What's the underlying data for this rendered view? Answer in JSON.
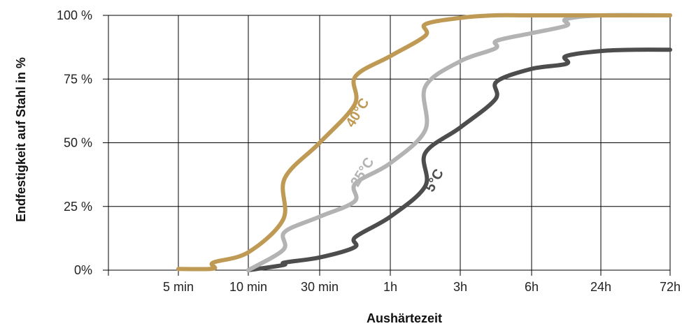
{
  "chart_data": {
    "type": "line",
    "xlabel": "Aushärtezeit",
    "ylabel": "Endfestigkeit auf Stahl in %",
    "x_ticks": [
      "5 min",
      "10 min",
      "30 min",
      "1h",
      "3h",
      "6h",
      "24h",
      "72h"
    ],
    "y_ticks": [
      "0%",
      "25 %",
      "50 %",
      "75 %",
      "100 %"
    ],
    "ylim": [
      0,
      100
    ],
    "grid": true,
    "series": [
      {
        "name": "40°C",
        "color": "#bf9a55",
        "points": [
          [
            "5 min",
            0.5
          ],
          [
            "5 min+",
            0.6
          ],
          [
            "10 min-",
            3
          ],
          [
            "10 min",
            7
          ],
          [
            "10 min+",
            20
          ],
          [
            "30 min-",
            36
          ],
          [
            "30 min",
            50
          ],
          [
            "30 min+",
            65
          ],
          [
            "1h-",
            76
          ],
          [
            "1h",
            84
          ],
          [
            "1h+",
            92
          ],
          [
            "3h-",
            96.5
          ],
          [
            "3h",
            99
          ],
          [
            "3h+",
            100
          ],
          [
            "6h",
            100
          ],
          [
            "24h",
            100
          ],
          [
            "72h",
            100
          ]
        ]
      },
      {
        "name": "25°C",
        "color": "#b3b3b3",
        "points": [
          [
            "10 min",
            0
          ],
          [
            "10 min+",
            8
          ],
          [
            "30 min-",
            15
          ],
          [
            "30 min",
            21
          ],
          [
            "30 min+",
            27
          ],
          [
            "1h-",
            34
          ],
          [
            "1h",
            42
          ],
          [
            "1h+",
            55
          ],
          [
            "3h-",
            72
          ],
          [
            "3h",
            82
          ],
          [
            "3h+",
            87
          ],
          [
            "6h-",
            90
          ],
          [
            "6h",
            93
          ],
          [
            "6h+",
            96
          ],
          [
            "24h-",
            98.5
          ],
          [
            "24h",
            100
          ],
          [
            "72h",
            100
          ]
        ]
      },
      {
        "name": "5°C",
        "color": "#4d4d4d",
        "points": [
          [
            "10 min",
            0
          ],
          [
            "10 min+",
            2
          ],
          [
            "30 min-",
            3
          ],
          [
            "30 min",
            5
          ],
          [
            "30 min+",
            9
          ],
          [
            "1h-",
            13
          ],
          [
            "1h",
            21
          ],
          [
            "1h+",
            33
          ],
          [
            "3h-",
            46
          ],
          [
            "3h",
            56
          ],
          [
            "3h+",
            67
          ],
          [
            "6h-",
            74
          ],
          [
            "6h",
            79
          ],
          [
            "6h+",
            81
          ],
          [
            "24h-",
            84
          ],
          [
            "24h",
            86
          ],
          [
            "24h+",
            86.5
          ],
          [
            "72h",
            86.5
          ]
        ]
      }
    ]
  }
}
